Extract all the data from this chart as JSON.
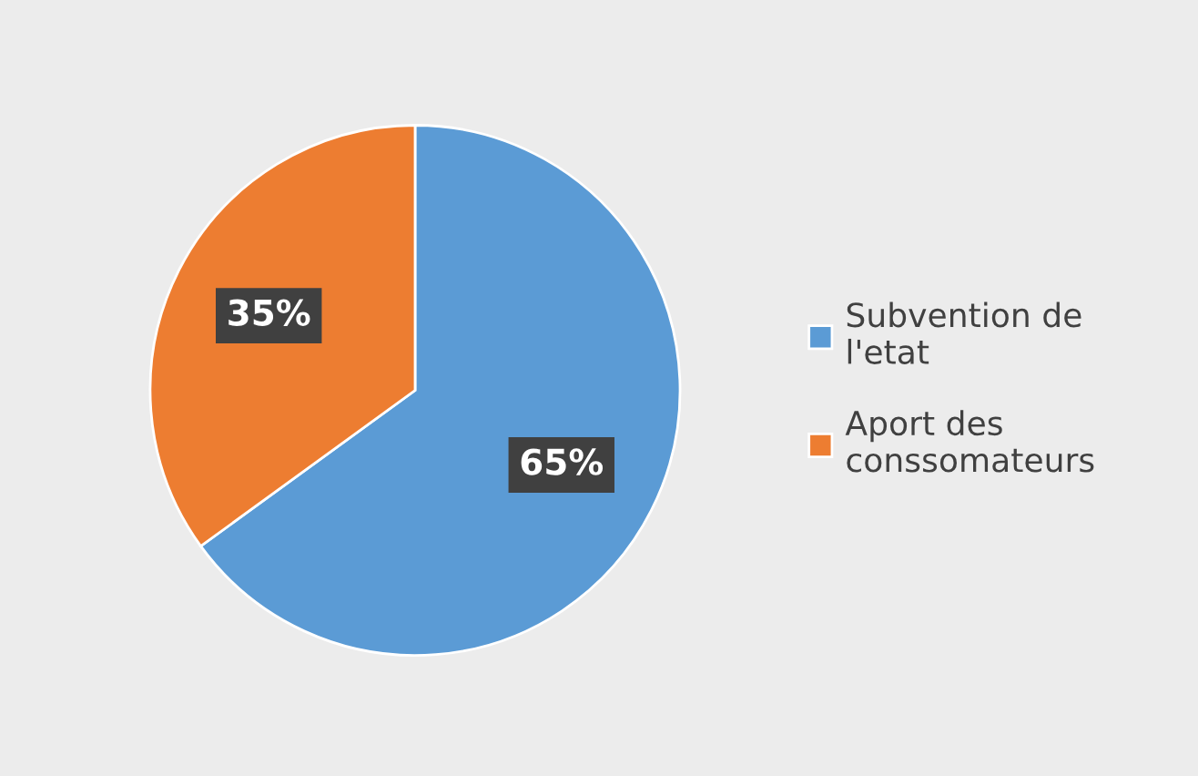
{
  "chart_data": {
    "type": "pie",
    "categories": [
      "Subvention de l'etat",
      "Aport des conssomateurs"
    ],
    "values": [
      65,
      35
    ],
    "colors": [
      "#5b9bd5",
      "#ed7d31"
    ],
    "value_labels": [
      "65%",
      "35%"
    ],
    "legend": "right"
  }
}
